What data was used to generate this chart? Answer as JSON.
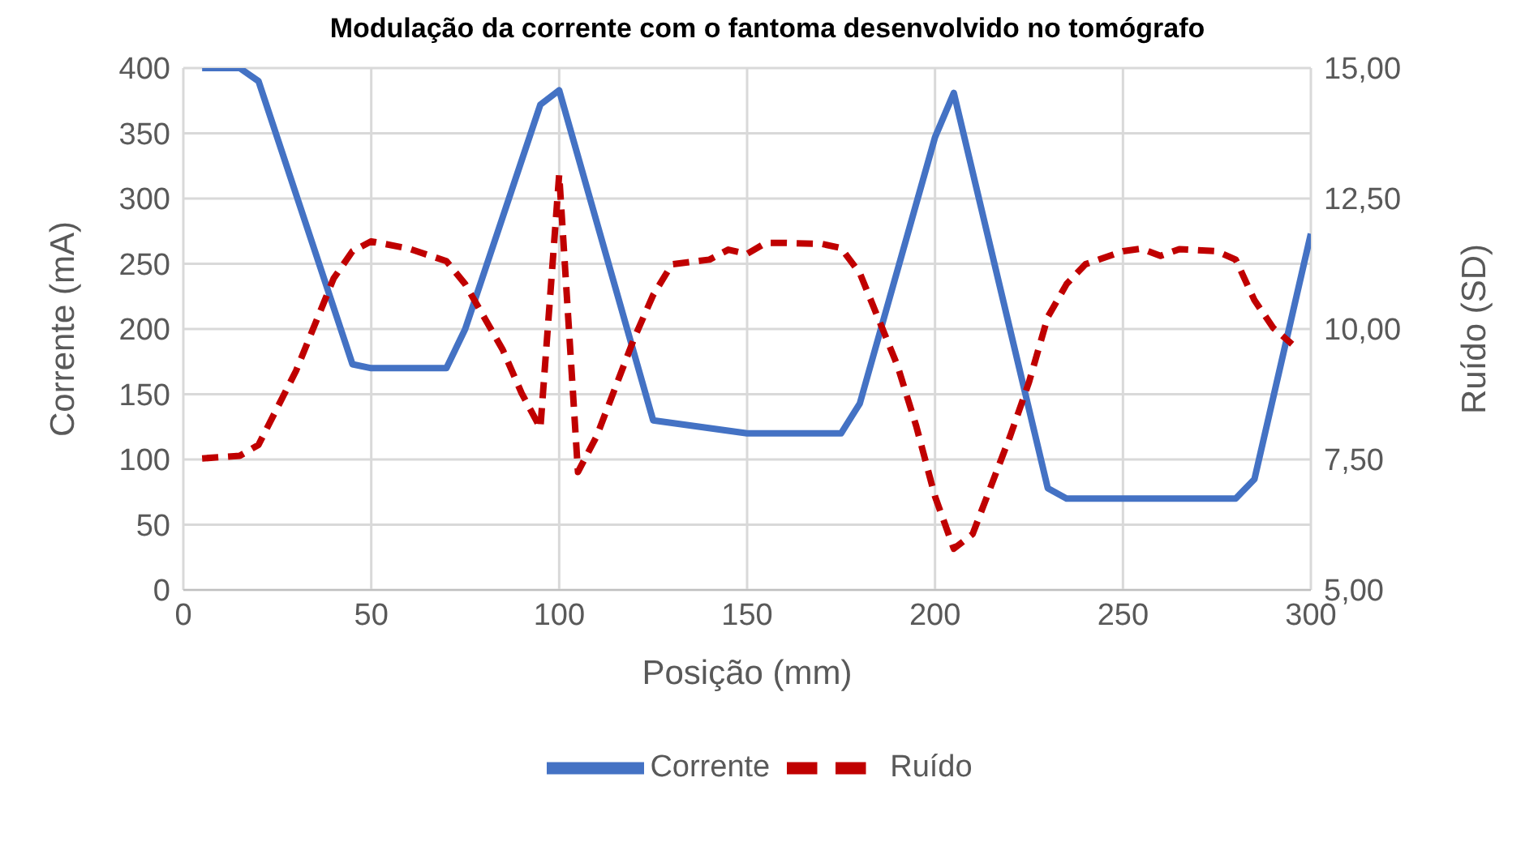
{
  "chart_data": {
    "type": "line",
    "title": "Modulação da corrente com o fantoma desenvolvido no tomógrafo",
    "xlabel": "Posição (mm)",
    "ylabel": "Corrente (mA)",
    "y2label": "Ruído (SD)",
    "xlim": [
      0,
      300
    ],
    "xticks": [
      0,
      50,
      100,
      150,
      200,
      250,
      300
    ],
    "ylim": [
      0,
      400
    ],
    "yticks": [
      0,
      50,
      100,
      150,
      200,
      250,
      300,
      350,
      400
    ],
    "y2lim": [
      5,
      15
    ],
    "y2ticks": [
      {
        "value": 5,
        "label": "5,00"
      },
      {
        "value": 7.5,
        "label": "7,50"
      },
      {
        "value": 10,
        "label": "10,00"
      },
      {
        "value": 12.5,
        "label": "12,50"
      },
      {
        "value": 15,
        "label": "15,00"
      }
    ],
    "grid": true,
    "legend": "bottom",
    "series": [
      {
        "name": "Corrente",
        "color": "#4472c4",
        "line_style": "solid",
        "x": [
          5,
          15,
          20,
          45,
          50,
          70,
          75,
          95,
          100,
          125,
          150,
          175,
          180,
          200,
          205,
          230,
          235,
          280,
          285,
          300
        ],
        "values": [
          400,
          400,
          390,
          173,
          170,
          170,
          200,
          372,
          383,
          130,
          120,
          120,
          143,
          347,
          381,
          78,
          70,
          70,
          85,
          273
        ]
      },
      {
        "name": "Ruído",
        "color": "#c00000",
        "line_style": "dashed",
        "axis": "y2",
        "x": [
          5,
          15,
          20,
          30,
          40,
          45,
          50,
          60,
          70,
          75,
          85,
          90,
          95,
          100,
          105,
          110,
          120,
          125,
          130,
          140,
          145,
          150,
          155,
          160,
          170,
          175,
          180,
          190,
          195,
          200,
          205,
          210,
          220,
          225,
          230,
          235,
          240,
          250,
          255,
          260,
          265,
          275,
          280,
          285,
          290,
          295
        ],
        "values": [
          7.52,
          7.57,
          7.78,
          9.2,
          10.97,
          11.49,
          11.68,
          11.54,
          11.3,
          10.86,
          9.6,
          8.77,
          8.1,
          12.96,
          7.26,
          7.95,
          9.83,
          10.65,
          11.24,
          11.33,
          11.52,
          11.44,
          11.65,
          11.65,
          11.63,
          11.55,
          11.07,
          9.3,
          8.14,
          6.79,
          5.79,
          6.07,
          7.95,
          8.98,
          10.23,
          10.86,
          11.24,
          11.49,
          11.54,
          11.4,
          11.53,
          11.49,
          11.33,
          10.55,
          10.02,
          9.71
        ]
      }
    ]
  }
}
